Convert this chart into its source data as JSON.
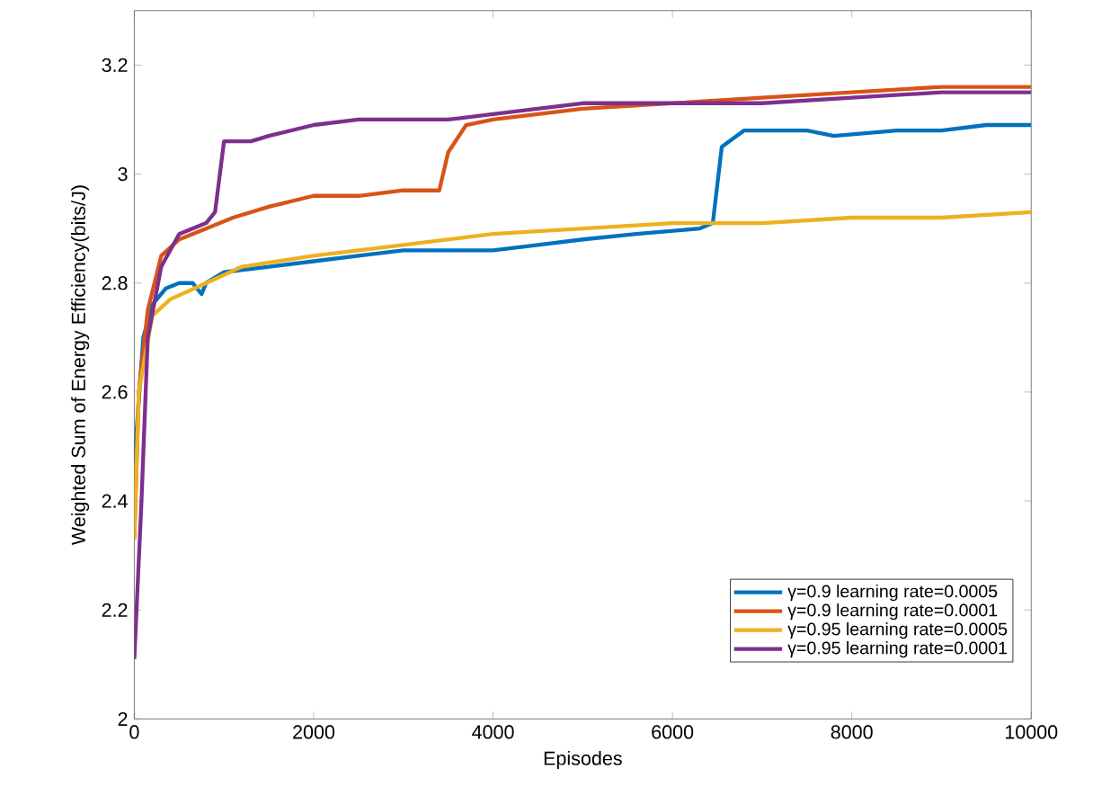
{
  "chart_data": {
    "type": "line",
    "xlabel": "Episodes",
    "ylabel": "Weighted Sum of Energy Efficiency(bits/J)",
    "xlim": [
      0,
      10000
    ],
    "ylim": [
      2,
      3.3
    ],
    "xticks": [
      0,
      2000,
      4000,
      6000,
      8000,
      10000
    ],
    "yticks": [
      2,
      2.2,
      2.4,
      2.6,
      2.8,
      3,
      3.2
    ],
    "grid": false,
    "legend": "bottom right",
    "line_style": "solid",
    "marker": "none",
    "series": [
      {
        "name": "γ=0.9 learning rate=0.0005",
        "color": "#0072bd",
        "x": [
          0,
          100,
          200,
          350,
          500,
          650,
          700,
          750,
          800,
          1000,
          1500,
          2000,
          2500,
          3000,
          3500,
          4000,
          4500,
          5000,
          5600,
          6300,
          6450,
          6550,
          6800,
          7500,
          7800,
          8500,
          9000,
          9500,
          10000
        ],
        "values": [
          2.47,
          2.7,
          2.76,
          2.79,
          2.8,
          2.8,
          2.79,
          2.78,
          2.8,
          2.82,
          2.83,
          2.84,
          2.85,
          2.86,
          2.86,
          2.86,
          2.87,
          2.88,
          2.89,
          2.9,
          2.91,
          3.05,
          3.08,
          3.08,
          3.07,
          3.08,
          3.08,
          3.09,
          3.09
        ]
      },
      {
        "name": "γ=0.9 learning rate=0.0001",
        "color": "#d95319",
        "x": [
          0,
          50,
          150,
          300,
          500,
          800,
          1100,
          1500,
          2000,
          2500,
          3000,
          3400,
          3500,
          3700,
          4000,
          5000,
          6000,
          7000,
          8000,
          9000,
          9700,
          10000
        ],
        "values": [
          2.33,
          2.6,
          2.75,
          2.85,
          2.88,
          2.9,
          2.92,
          2.94,
          2.96,
          2.96,
          2.97,
          2.97,
          3.04,
          3.09,
          3.1,
          3.12,
          3.13,
          3.14,
          3.15,
          3.16,
          3.16,
          3.16
        ]
      },
      {
        "name": "γ=0.95 learning rate=0.0005",
        "color": "#edb120",
        "x": [
          0,
          50,
          200,
          400,
          800,
          1200,
          2000,
          3000,
          4000,
          5000,
          6000,
          7000,
          8000,
          9000,
          10000
        ],
        "values": [
          2.33,
          2.6,
          2.74,
          2.77,
          2.8,
          2.83,
          2.85,
          2.87,
          2.89,
          2.9,
          2.91,
          2.91,
          2.92,
          2.92,
          2.93
        ]
      },
      {
        "name": "γ=0.95 learning rate=0.0001",
        "color": "#7e2f8e",
        "x": [
          0,
          80,
          150,
          300,
          500,
          800,
          900,
          1000,
          1300,
          1500,
          2000,
          2500,
          3000,
          3500,
          4000,
          5000,
          6000,
          7000,
          8000,
          9000,
          10000
        ],
        "values": [
          2.11,
          2.4,
          2.7,
          2.83,
          2.89,
          2.91,
          2.93,
          3.06,
          3.06,
          3.07,
          3.09,
          3.1,
          3.1,
          3.1,
          3.11,
          3.13,
          3.13,
          3.13,
          3.14,
          3.15,
          3.15
        ]
      }
    ]
  }
}
